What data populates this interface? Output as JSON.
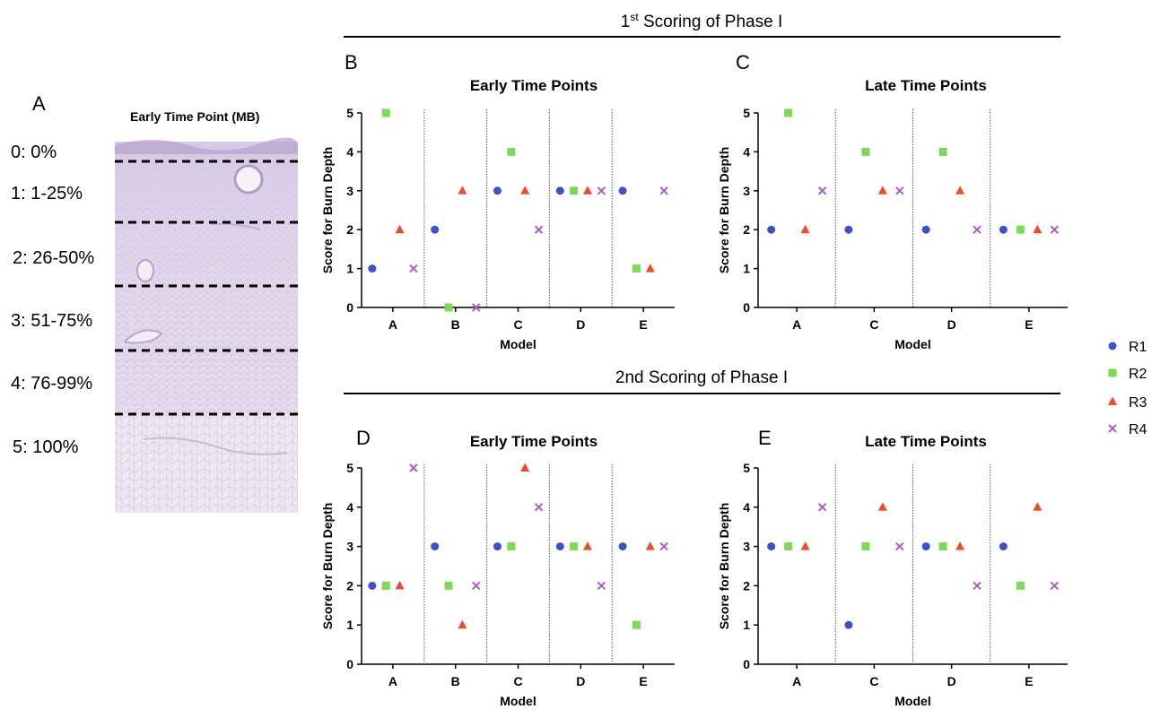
{
  "panel_a": {
    "letter": "A",
    "title": "Early Time Point (MB)",
    "levels": [
      "0:  0%",
      "1: 1-25%",
      "2: 26-50%",
      "3: 51-75%",
      "4: 76-99%",
      "5:  100%"
    ]
  },
  "section_headers": {
    "first": {
      "main": "1",
      "sup": "st",
      "rest": " Scoring of Phase I"
    },
    "second": "2nd Scoring of Phase I"
  },
  "legend": {
    "entries": [
      {
        "label": "R1",
        "marker": "circle",
        "color": "#3f51c4"
      },
      {
        "label": "R2",
        "marker": "square",
        "color": "#7ed957"
      },
      {
        "label": "R3",
        "marker": "triangle",
        "color": "#f04a2a"
      },
      {
        "label": "R4",
        "marker": "cross",
        "color": "#b05bc4"
      }
    ]
  },
  "chart_data": [
    {
      "panel": "B",
      "type": "scatter",
      "title": "Early Time Points",
      "xlabel": "Model",
      "ylabel": "Score for Burn Depth",
      "ylim": [
        0,
        5
      ],
      "yticks": [
        "0",
        "1",
        "2",
        "3",
        "4",
        "5"
      ],
      "categories": [
        "A",
        "B",
        "C",
        "D",
        "E"
      ],
      "series": [
        {
          "name": "R1",
          "values": [
            1,
            2,
            3,
            3,
            3
          ]
        },
        {
          "name": "R2",
          "values": [
            5,
            0,
            4,
            3,
            1
          ]
        },
        {
          "name": "R3",
          "values": [
            2,
            3,
            3,
            3,
            1
          ]
        },
        {
          "name": "R4",
          "values": [
            1,
            0,
            2,
            3,
            3
          ]
        }
      ]
    },
    {
      "panel": "C",
      "type": "scatter",
      "title": "Late Time Points",
      "xlabel": "Model",
      "ylabel": "Score for Burn Depth",
      "ylim": [
        0,
        5
      ],
      "yticks": [
        "0",
        "1",
        "2",
        "3",
        "4",
        "5"
      ],
      "categories": [
        "A",
        "C",
        "D",
        "E"
      ],
      "series": [
        {
          "name": "R1",
          "values": [
            2,
            2,
            2,
            2
          ]
        },
        {
          "name": "R2",
          "values": [
            5,
            4,
            4,
            2
          ]
        },
        {
          "name": "R3",
          "values": [
            2,
            3,
            3,
            2
          ]
        },
        {
          "name": "R4",
          "values": [
            3,
            3,
            2,
            2
          ]
        }
      ]
    },
    {
      "panel": "D",
      "type": "scatter",
      "title": "Early Time Points",
      "xlabel": "Model",
      "ylabel": "Score for Burn Depth",
      "ylim": [
        0,
        5
      ],
      "yticks": [
        "0",
        "1",
        "2",
        "3",
        "4",
        "5"
      ],
      "categories": [
        "A",
        "B",
        "C",
        "D",
        "E"
      ],
      "series": [
        {
          "name": "R1",
          "values": [
            2,
            3,
            3,
            3,
            3
          ]
        },
        {
          "name": "R2",
          "values": [
            2,
            2,
            3,
            3,
            1
          ]
        },
        {
          "name": "R3",
          "values": [
            2,
            1,
            5,
            3,
            3
          ]
        },
        {
          "name": "R4",
          "values": [
            5,
            2,
            4,
            2,
            3
          ]
        }
      ]
    },
    {
      "panel": "E",
      "type": "scatter",
      "title": "Late Time Points",
      "xlabel": "Model",
      "ylabel": "Score for Burn Depth",
      "ylim": [
        0,
        5
      ],
      "yticks": [
        "0",
        "1",
        "2",
        "3",
        "4",
        "5"
      ],
      "categories": [
        "A",
        "C",
        "D",
        "E"
      ],
      "series": [
        {
          "name": "R1",
          "values": [
            3,
            1,
            3,
            3
          ]
        },
        {
          "name": "R2",
          "values": [
            3,
            3,
            3,
            2
          ]
        },
        {
          "name": "R3",
          "values": [
            3,
            4,
            3,
            4
          ]
        },
        {
          "name": "R4",
          "values": [
            4,
            3,
            2,
            2
          ]
        }
      ]
    }
  ]
}
